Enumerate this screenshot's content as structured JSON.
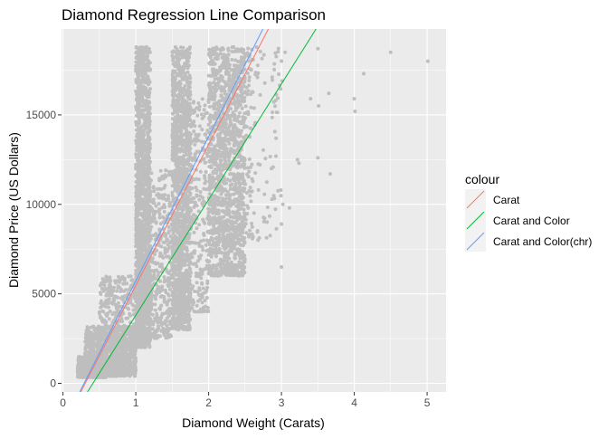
{
  "chart_data": {
    "type": "scatter",
    "title": "Diamond Regression Line Comparison",
    "xlabel": "Diamond Weight (Carats)",
    "ylabel": "Diamond Price (US Dollars)",
    "xlim": [
      -0.02,
      5.26
    ],
    "ylim": [
      -480,
      19800
    ],
    "x_ticks": [
      0,
      1,
      2,
      3,
      4,
      5
    ],
    "x_tick_labels": [
      "0",
      "1",
      "2",
      "3",
      "4",
      "5"
    ],
    "y_ticks": [
      0,
      5000,
      10000,
      15000
    ],
    "y_tick_labels": [
      "0",
      "5000",
      "10000",
      "15000"
    ],
    "grid": true,
    "legend": {
      "title": "colour",
      "placement": "right",
      "entries": [
        "Carat",
        "Carat and Color",
        "Carat and Color(chr)"
      ]
    },
    "points_color": "#bebebe",
    "point_clusters": [
      {
        "x": [
          0.2,
          0.6
        ],
        "y": [
          326,
          1500
        ],
        "n": 500
      },
      {
        "x": [
          0.3,
          1.0
        ],
        "y": [
          400,
          3200
        ],
        "n": 800
      },
      {
        "x": [
          0.5,
          1.0
        ],
        "y": [
          700,
          6000
        ],
        "n": 420
      },
      {
        "x": [
          1.0,
          1.2
        ],
        "y": [
          2000,
          18800
        ],
        "n": 1400
      },
      {
        "x": [
          1.0,
          1.5
        ],
        "y": [
          2500,
          12000
        ],
        "n": 600
      },
      {
        "x": [
          1.5,
          1.75
        ],
        "y": [
          3000,
          18800
        ],
        "n": 1200
      },
      {
        "x": [
          1.5,
          2.0
        ],
        "y": [
          4000,
          16000
        ],
        "n": 500
      },
      {
        "x": [
          2.0,
          2.5
        ],
        "y": [
          6000,
          18800
        ],
        "n": 1200
      },
      {
        "x": [
          2.0,
          2.6
        ],
        "y": [
          8000,
          18800
        ],
        "n": 300
      },
      {
        "x": [
          2.5,
          3.0
        ],
        "y": [
          8000,
          18800
        ],
        "n": 100
      }
    ],
    "outlier_points": [
      {
        "x": 3.0,
        "y": 6500
      },
      {
        "x": 3.0,
        "y": 8900
      },
      {
        "x": 3.02,
        "y": 10000
      },
      {
        "x": 3.01,
        "y": 16900
      },
      {
        "x": 3.05,
        "y": 18500
      },
      {
        "x": 3.11,
        "y": 9800
      },
      {
        "x": 3.22,
        "y": 12500
      },
      {
        "x": 3.24,
        "y": 12300
      },
      {
        "x": 3.4,
        "y": 15900
      },
      {
        "x": 3.5,
        "y": 12600
      },
      {
        "x": 3.5,
        "y": 18700
      },
      {
        "x": 3.51,
        "y": 15500
      },
      {
        "x": 3.65,
        "y": 16200
      },
      {
        "x": 3.67,
        "y": 11700
      },
      {
        "x": 4.0,
        "y": 15900
      },
      {
        "x": 4.01,
        "y": 15200
      },
      {
        "x": 4.13,
        "y": 17300
      },
      {
        "x": 4.5,
        "y": 18500
      },
      {
        "x": 5.01,
        "y": 18000
      }
    ],
    "series": [
      {
        "name": "Carat",
        "type": "line",
        "color": "#f8766d",
        "x": [
          0.244,
          2.82
        ],
        "y": [
          -480,
          19800
        ]
      },
      {
        "name": "Carat and Color",
        "type": "line",
        "color": "#00ba38",
        "x": [
          0.337,
          3.475
        ],
        "y": [
          -480,
          19800
        ]
      },
      {
        "name": "Carat and Color(chr)",
        "type": "line",
        "color": "#619cff",
        "x": [
          0.23,
          2.745
        ],
        "y": [
          -480,
          19800
        ]
      }
    ]
  }
}
